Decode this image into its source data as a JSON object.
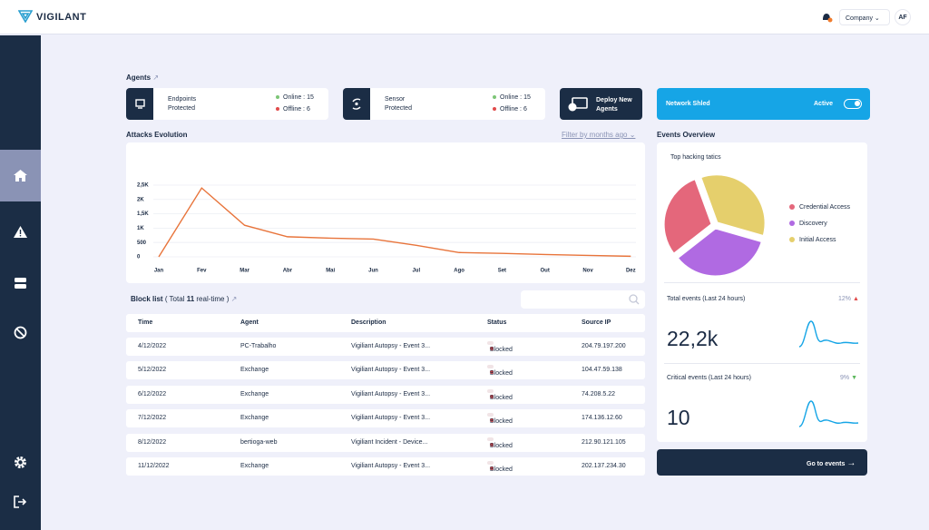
{
  "header": {
    "brand": "VIGILANT",
    "company": "Company",
    "avatar": "AF"
  },
  "agents": {
    "title": "Agents",
    "cards": [
      {
        "label": "Endpoints Protected",
        "online": "Online : 15",
        "offline": "Offline : 6"
      },
      {
        "label": "Sensor Protected",
        "online": "Online : 15",
        "offline": "Offline : 6"
      }
    ],
    "deploy": "Deploy New Agents"
  },
  "shield": {
    "label": "Network Shled",
    "state": "Active"
  },
  "attacks": {
    "title": "Attacks Evolution",
    "filter": "Filter by months ago"
  },
  "block_list": {
    "title": "Block list",
    "total_prefix": "( Total",
    "total": "11",
    "total_suffix": "real-time )",
    "columns": [
      "Time",
      "Agent",
      "Description",
      "Status",
      "Source IP"
    ],
    "rows": [
      [
        "4/12/2022",
        "PC-Trabalho",
        "Vigiliant Autopsy - Event 3...",
        "Blocked",
        "204.79.197.200"
      ],
      [
        "5/12/2022",
        "Exchange",
        "Vigiliant Autopsy - Event 3...",
        "Blocked",
        "104.47.59.138"
      ],
      [
        "6/12/2022",
        "Exchange",
        "Vigiliant Autopsy - Event 3...",
        "Blocked",
        "74.208.5.22"
      ],
      [
        "7/12/2022",
        "Exchange",
        "Vigiliant Autopsy - Event 3...",
        "Blocked",
        "174.136.12.60"
      ],
      [
        "8/12/2022",
        "bertioga-web",
        "Vigiliant Incident - Device...",
        "Blocked",
        "212.90.121.105"
      ],
      [
        "11/12/2022",
        "Exchange",
        "Vigiliant Autopsy - Event 3...",
        "Blocked",
        "202.137.234.30"
      ]
    ]
  },
  "events": {
    "title": "Events Overview",
    "total_label": "Total events (Last 24 hours)",
    "total_change": "12%",
    "total_value": "22,2k",
    "critical_label": "Critical events (Last 24 hours)",
    "critical_change": "9%",
    "critical_value": "10",
    "button": "Go to events"
  },
  "chart_data": [
    {
      "type": "line",
      "categories": [
        "Jan",
        "Fev",
        "Mar",
        "Abr",
        "Mai",
        "Jun",
        "Jul",
        "Ago",
        "Set",
        "Out",
        "Nov",
        "Dez"
      ],
      "values": [
        0,
        2400,
        1100,
        700,
        650,
        620,
        400,
        150,
        120,
        80,
        50,
        20
      ],
      "color": "#e8743b",
      "ylim": [
        0,
        2800
      ],
      "yticks": [
        0,
        500,
        {
          "value": 1000,
          "label": "1K"
        },
        {
          "value": 1500,
          "label": "1,5K"
        },
        {
          "value": 2000,
          "label": "2K"
        },
        {
          "value": 2500,
          "label": "2,5K"
        }
      ],
      "grid": true
    },
    {
      "type": "pie",
      "title": "Top hacking tatics",
      "categories": [
        "Credential Access",
        "Discovery",
        "Initial Access"
      ],
      "values": [
        30,
        35,
        35
      ],
      "colors": [
        "#e4677b",
        "#b06ae2",
        "#e5cf6c"
      ]
    }
  ]
}
